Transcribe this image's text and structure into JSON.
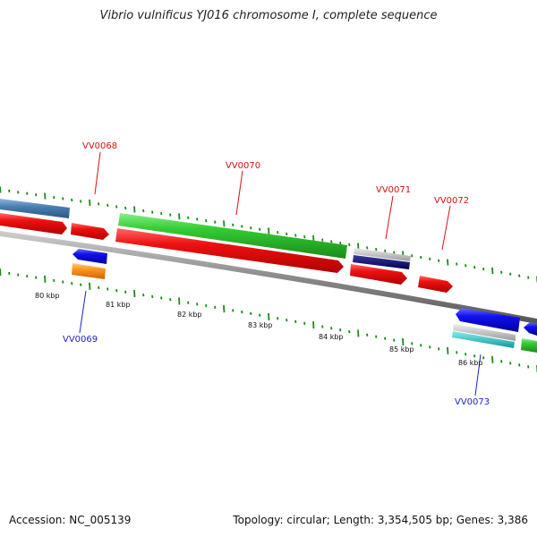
{
  "title": "Vibrio vulnificus YJ016 chromosome I, complete sequence",
  "footer": {
    "accession": "Accession: NC_005139",
    "stats": "Topology: circular; Length: 3,354,505 bp; Genes: 3,386"
  },
  "colors": {
    "backbone": "#8a8a8a",
    "tick": "#1a8a1a",
    "forward_label": "#dd1111",
    "reverse_label": "#2222cc",
    "cds_red": "#ee1111",
    "cds_green": "#33cc33",
    "cds_blue": "#1111ee",
    "cds_orange": "#ff9922",
    "cds_steelblue": "#4a7fb5",
    "cds_navy": "#000080",
    "cds_grey": "#bfbfbf",
    "cds_cyan": "#22cccc"
  },
  "scale_labels": [
    "80 kbp",
    "81 kbp",
    "82 kbp",
    "83 kbp",
    "84 kbp",
    "85 kbp",
    "86 kbp"
  ],
  "gene_labels": [
    {
      "name": "VV0068",
      "strand": "forward"
    },
    {
      "name": "VV0069",
      "strand": "reverse"
    },
    {
      "name": "VV0070",
      "strand": "forward"
    },
    {
      "name": "VV0071",
      "strand": "forward"
    },
    {
      "name": "VV0072",
      "strand": "forward"
    },
    {
      "name": "VV0073",
      "strand": "reverse"
    }
  ]
}
